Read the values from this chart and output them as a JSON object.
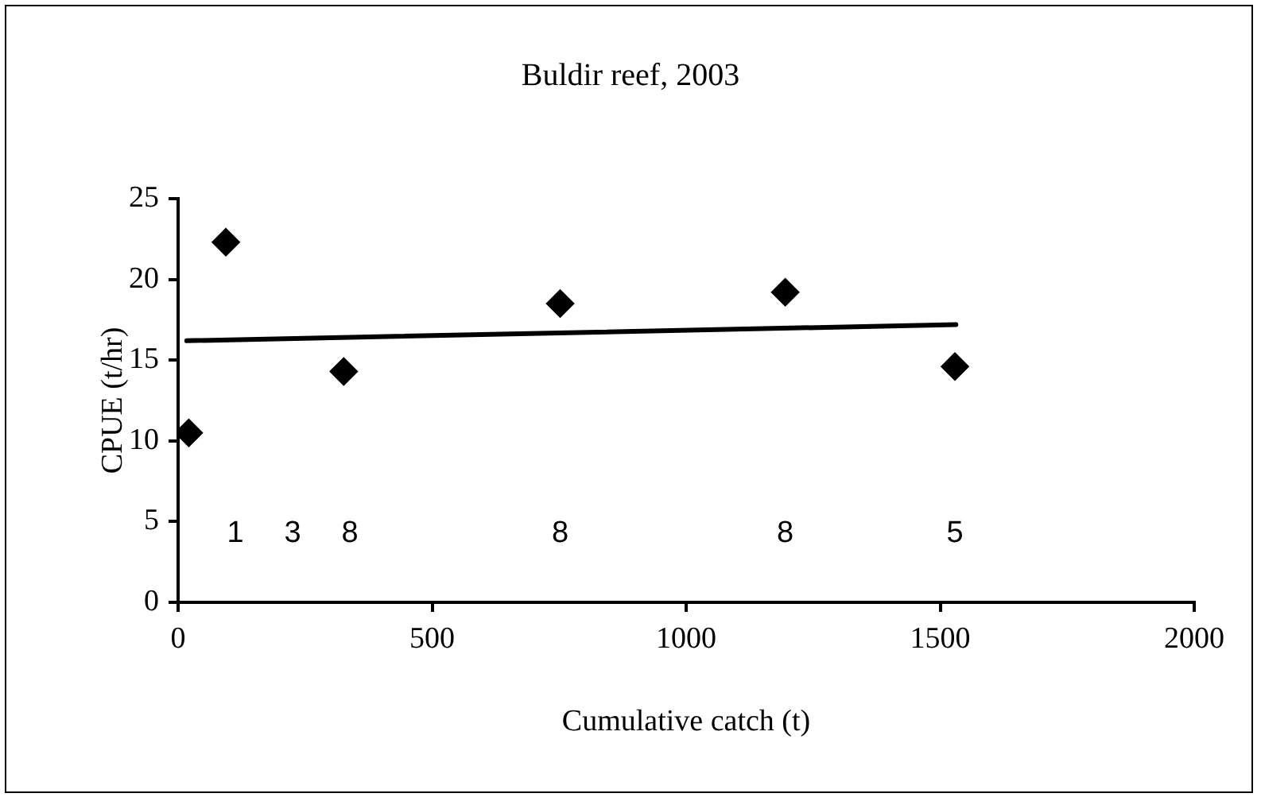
{
  "chart_data": {
    "type": "scatter",
    "title": "Buldir reef, 2003",
    "xlabel": "Cumulative catch (t)",
    "ylabel": "CPUE (t/hr)",
    "x": [
      21,
      94,
      326,
      752,
      1195,
      1529
    ],
    "series": [
      {
        "type": "scatter",
        "color": "#000000",
        "marker": "diamond",
        "values": [
          10.5,
          22.3,
          14.3,
          18.5,
          19.2,
          14.6
        ]
      },
      {
        "type": "line",
        "color": "#000000",
        "marker": "none",
        "x": [
          17,
          1531
        ],
        "values": [
          16.2,
          17.2
        ]
      }
    ],
    "xlim": [
      0,
      2000
    ],
    "xticks": [
      0,
      500,
      1000,
      1500,
      2000
    ],
    "ylim": [
      0,
      25
    ],
    "yticks": [
      0,
      5,
      10,
      15,
      20,
      25
    ],
    "grid": false,
    "legend": false,
    "annotations": [
      "1",
      "3",
      "8",
      "8",
      "8",
      "5"
    ]
  }
}
